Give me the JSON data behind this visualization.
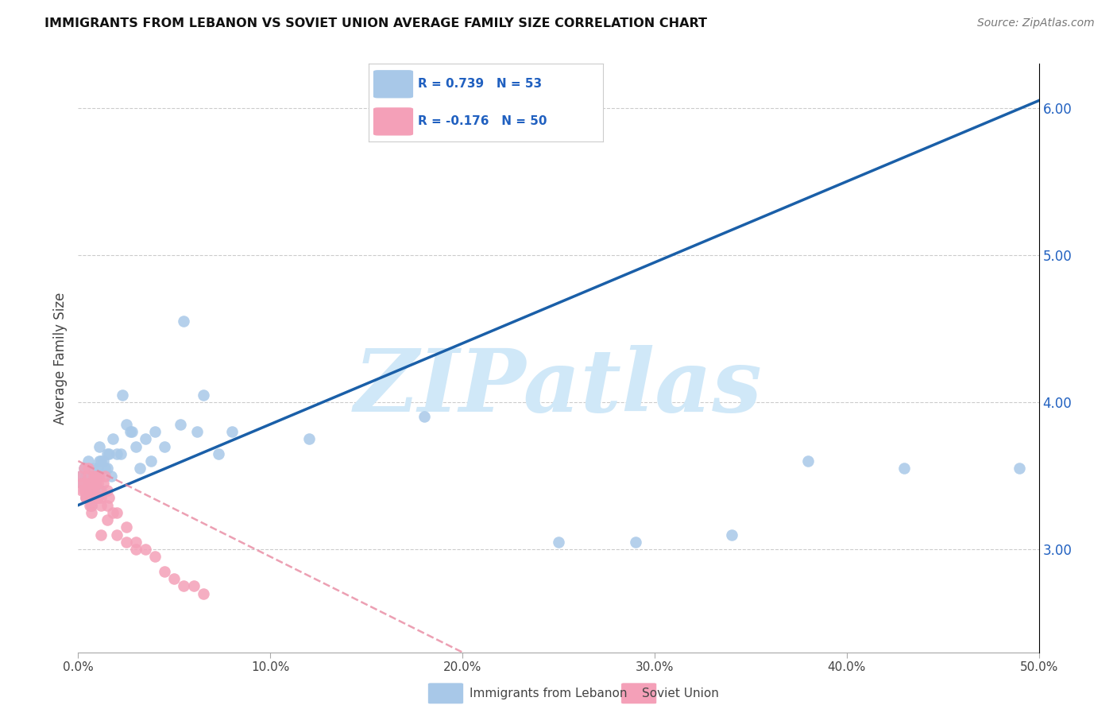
{
  "title": "IMMIGRANTS FROM LEBANON VS SOVIET UNION AVERAGE FAMILY SIZE CORRELATION CHART",
  "source": "Source: ZipAtlas.com",
  "ylabel": "Average Family Size",
  "xlim": [
    0.0,
    0.5
  ],
  "ylim": [
    2.3,
    6.3
  ],
  "xticks": [
    0.0,
    0.1,
    0.2,
    0.3,
    0.4,
    0.5
  ],
  "xticklabels": [
    "0.0%",
    "10.0%",
    "20.0%",
    "30.0%",
    "40.0%",
    "50.0%"
  ],
  "yticks": [
    3.0,
    4.0,
    5.0,
    6.0
  ],
  "R_lebanon": 0.739,
  "N_lebanon": 53,
  "R_soviet": -0.176,
  "N_soviet": 50,
  "color_lebanon": "#a8c8e8",
  "color_soviet": "#f4a0b8",
  "color_trend_lebanon": "#1a5fa8",
  "color_trend_soviet": "#e888a0",
  "watermark": "ZIPatlas",
  "watermark_color": "#d0e8f8",
  "legend_text_color": "#2060c0",
  "trend_lebanon_x0": 0.0,
  "trend_lebanon_y0": 3.3,
  "trend_lebanon_x1": 0.5,
  "trend_lebanon_y1": 6.05,
  "trend_soviet_x0": 0.0,
  "trend_soviet_y0": 3.6,
  "trend_soviet_x1": 0.2,
  "trend_soviet_y1": 2.3,
  "lebanon_x": [
    0.001,
    0.002,
    0.003,
    0.004,
    0.005,
    0.006,
    0.007,
    0.008,
    0.009,
    0.01,
    0.011,
    0.012,
    0.013,
    0.015,
    0.017,
    0.02,
    0.023,
    0.027,
    0.032,
    0.038,
    0.045,
    0.053,
    0.062,
    0.073,
    0.01,
    0.015,
    0.008,
    0.006,
    0.004,
    0.012,
    0.018,
    0.022,
    0.028,
    0.007,
    0.009,
    0.011,
    0.014,
    0.016,
    0.025,
    0.03,
    0.035,
    0.04,
    0.12,
    0.18,
    0.25,
    0.29,
    0.34,
    0.38,
    0.43,
    0.49,
    0.055,
    0.065,
    0.08
  ],
  "lebanon_y": [
    3.5,
    3.45,
    3.55,
    3.35,
    3.6,
    3.4,
    3.3,
    3.55,
    3.45,
    3.5,
    3.7,
    3.4,
    3.6,
    3.55,
    3.5,
    3.65,
    4.05,
    3.8,
    3.55,
    3.6,
    3.7,
    3.85,
    3.8,
    3.65,
    3.55,
    3.65,
    3.45,
    3.35,
    3.5,
    3.6,
    3.75,
    3.65,
    3.8,
    3.4,
    3.5,
    3.6,
    3.55,
    3.65,
    3.85,
    3.7,
    3.75,
    3.8,
    3.75,
    3.9,
    3.05,
    3.05,
    3.1,
    3.6,
    3.55,
    3.55,
    4.55,
    4.05,
    3.8
  ],
  "soviet_x": [
    0.001,
    0.002,
    0.003,
    0.004,
    0.005,
    0.006,
    0.007,
    0.008,
    0.009,
    0.01,
    0.011,
    0.012,
    0.013,
    0.014,
    0.015,
    0.016,
    0.003,
    0.004,
    0.005,
    0.006,
    0.007,
    0.008,
    0.009,
    0.01,
    0.011,
    0.002,
    0.003,
    0.004,
    0.005,
    0.006,
    0.012,
    0.015,
    0.018,
    0.02,
    0.025,
    0.03,
    0.008,
    0.01,
    0.012,
    0.015,
    0.02,
    0.025,
    0.03,
    0.035,
    0.04,
    0.045,
    0.05,
    0.055,
    0.06,
    0.065
  ],
  "soviet_y": [
    3.5,
    3.45,
    3.4,
    3.35,
    3.55,
    3.3,
    3.25,
    3.45,
    3.5,
    3.35,
    3.4,
    3.3,
    3.45,
    3.5,
    3.4,
    3.35,
    3.55,
    3.4,
    3.45,
    3.35,
    3.3,
    3.4,
    3.45,
    3.35,
    3.5,
    3.4,
    3.45,
    3.35,
    3.5,
    3.4,
    3.1,
    3.2,
    3.25,
    3.1,
    3.05,
    3.0,
    3.5,
    3.45,
    3.35,
    3.3,
    3.25,
    3.15,
    3.05,
    3.0,
    2.95,
    2.85,
    2.8,
    2.75,
    2.75,
    2.7
  ]
}
